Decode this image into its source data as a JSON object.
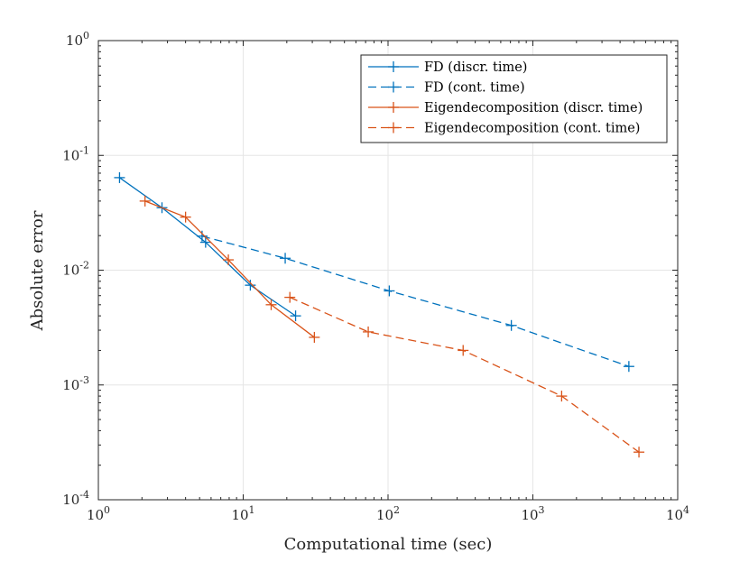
{
  "chart_data": {
    "type": "line",
    "title": "",
    "xlabel": "Computational time (sec)",
    "ylabel": "Absolute error",
    "xscale": "log",
    "yscale": "log",
    "xlim": [
      1,
      10000
    ],
    "ylim": [
      0.0001,
      1
    ],
    "grid": true,
    "legend_position": "top-right",
    "x_ticks": [
      {
        "base": "10",
        "exp": "0",
        "value": 1
      },
      {
        "base": "10",
        "exp": "1",
        "value": 10
      },
      {
        "base": "10",
        "exp": "2",
        "value": 100
      },
      {
        "base": "10",
        "exp": "3",
        "value": 1000
      },
      {
        "base": "10",
        "exp": "4",
        "value": 10000
      }
    ],
    "y_ticks": [
      {
        "base": "10",
        "exp": "0",
        "value": 1
      },
      {
        "base": "10",
        "exp": "-1",
        "value": 0.1
      },
      {
        "base": "10",
        "exp": "-2",
        "value": 0.01
      },
      {
        "base": "10",
        "exp": "-3",
        "value": 0.001
      },
      {
        "base": "10",
        "exp": "-4",
        "value": 0.0001
      }
    ],
    "series": [
      {
        "name": "FD (discr. time)",
        "color": "#0072BD",
        "dash": "solid",
        "marker": "+",
        "x": [
          1.4,
          2.75,
          5.5,
          11.2,
          23
        ],
        "y": [
          0.064,
          0.035,
          0.0175,
          0.0074,
          0.004
        ]
      },
      {
        "name": "FD (cont. time)",
        "color": "#0072BD",
        "dash": "dashed",
        "marker": "+",
        "x": [
          5.2,
          19.5,
          102,
          710,
          4600
        ],
        "y": [
          0.0198,
          0.0127,
          0.0066,
          0.0033,
          0.00145
        ]
      },
      {
        "name": "Eigendecomposition (discr. time)",
        "color": "#D95319",
        "dash": "solid",
        "marker": "+",
        "x": [
          2.1,
          4.0,
          7.9,
          15.6,
          31
        ],
        "y": [
          0.04,
          0.029,
          0.0123,
          0.005,
          0.0026
        ]
      },
      {
        "name": "Eigendecomposition (cont. time)",
        "color": "#D95319",
        "dash": "dashed",
        "marker": "+",
        "x": [
          21,
          73,
          330,
          1580,
          5400
        ],
        "y": [
          0.0058,
          0.0029,
          0.002,
          0.0008,
          0.00026
        ]
      }
    ]
  }
}
